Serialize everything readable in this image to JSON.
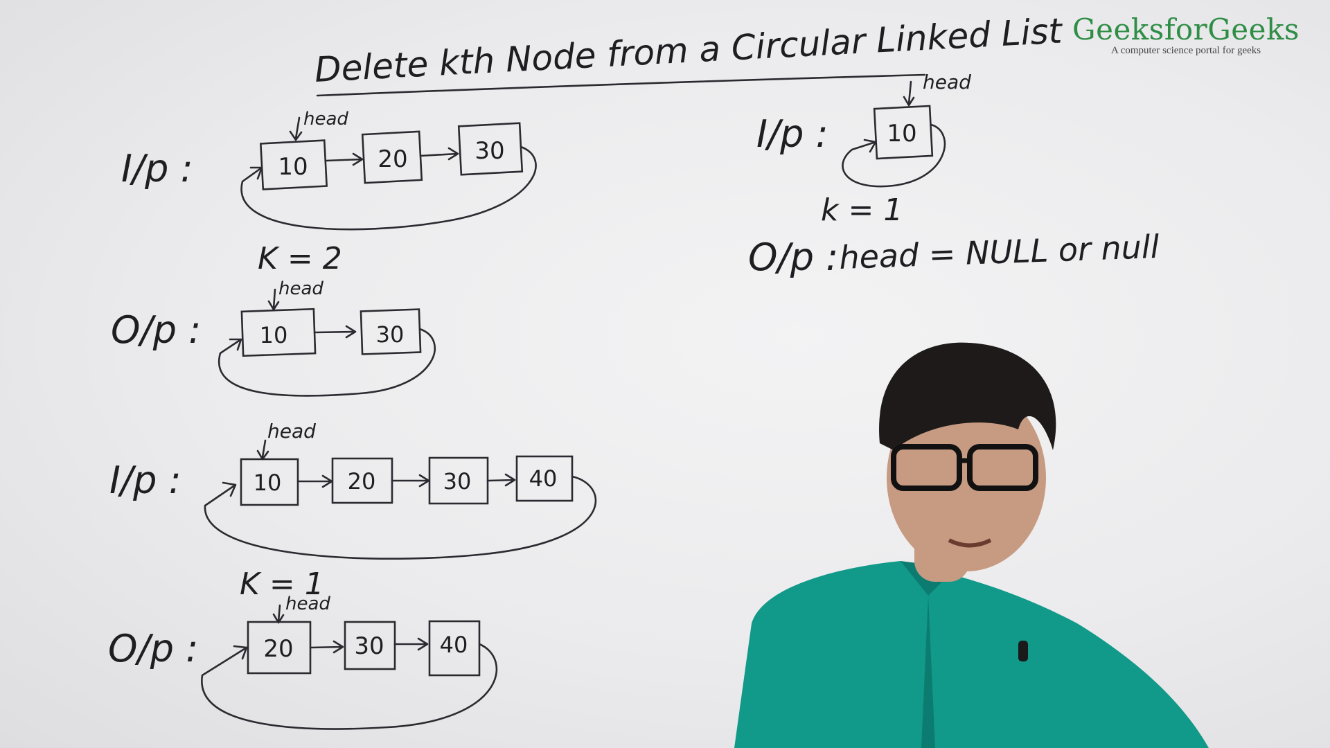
{
  "title": "Delete kth Node from a Circular Linked List",
  "brand": {
    "name": "GeeksforGeeks",
    "tagline": "A computer science portal for geeks"
  },
  "labels": {
    "input": "I/p :",
    "output": "O/p :",
    "head": "head"
  },
  "examples": [
    {
      "input": [
        "10",
        "20",
        "30"
      ],
      "k": "K = 2",
      "output": [
        "10",
        "30"
      ]
    },
    {
      "input": [
        "10",
        "20",
        "30",
        "40"
      ],
      "k": "K = 1",
      "output": [
        "20",
        "30",
        "40"
      ]
    },
    {
      "input": [
        "10"
      ],
      "k": "k = 1",
      "output_text": "head = NULL or null"
    }
  ],
  "colors": {
    "brand": "#2f8d46",
    "ink": "#2a2a30",
    "shirt": "#11998a"
  }
}
